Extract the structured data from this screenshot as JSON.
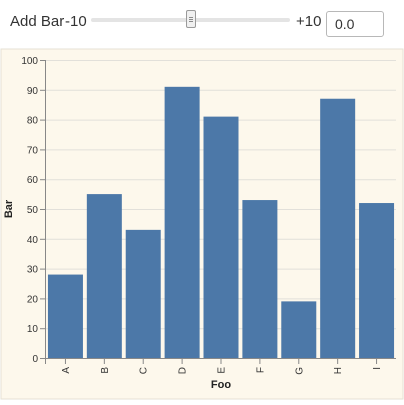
{
  "controls": {
    "add_label": "Add Bar",
    "min_label": "-10",
    "max_label": "+10",
    "slider": {
      "min": -10,
      "max": 10,
      "value": 0
    },
    "input_value": "0.0"
  },
  "chart_data": {
    "type": "bar",
    "categories": [
      "A",
      "B",
      "C",
      "D",
      "E",
      "F",
      "G",
      "H",
      "I"
    ],
    "values": [
      28,
      55,
      43,
      91,
      81,
      53,
      19,
      87,
      52
    ],
    "xlabel": "Foo",
    "ylabel": "Bar",
    "ylim": [
      0,
      100
    ],
    "yticks": [
      0,
      10,
      20,
      30,
      40,
      50,
      60,
      70,
      80,
      90,
      100
    ],
    "grid": true,
    "bar_color": "#4c78a8",
    "background_color": "#fdf8ec"
  }
}
